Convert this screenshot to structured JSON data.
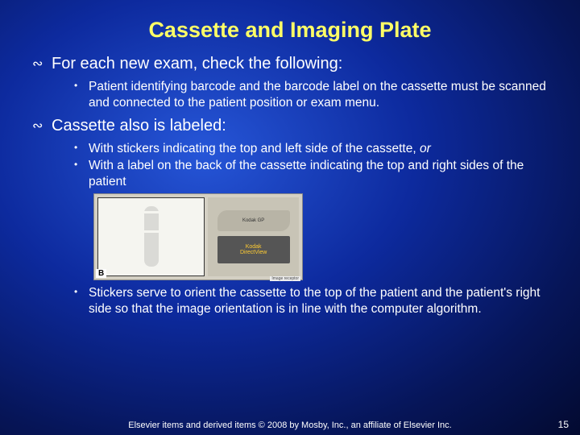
{
  "title": "Cassette and Imaging Plate",
  "main": [
    {
      "text": "For each new exam, check the following:",
      "sub": [
        {
          "text": "Patient identifying barcode and the barcode label on the cassette must be scanned and connected to the patient position or exam menu."
        }
      ]
    },
    {
      "text": "Cassette also is labeled:",
      "sub": [
        {
          "text": "With stickers indicating the top and left side of the cassette, ",
          "trailing_italic": "or"
        },
        {
          "text": "With a label on the back of the cassette indicating the top and right sides of the patient"
        },
        {
          "text": "Stickers serve to orient the cassette to the top of the patient and the patient's right side so that the image orientation is in line with the computer algorithm."
        }
      ]
    }
  ],
  "image": {
    "kodak_tag": "Kodak GP",
    "kodak_label_top": "Kodak",
    "kodak_label_bottom": "DirectView",
    "letter": "B",
    "caption": "Image receptor"
  },
  "footer": "Elsevier items and derived items © 2008 by Mosby, Inc., an affiliate of Elsevier Inc.",
  "page_number": "15",
  "colors": {
    "title_color": "#ffff66",
    "text_color": "#ffffff",
    "bg_gradient_inner": "#2656d8",
    "bg_gradient_outer": "#030a30"
  }
}
